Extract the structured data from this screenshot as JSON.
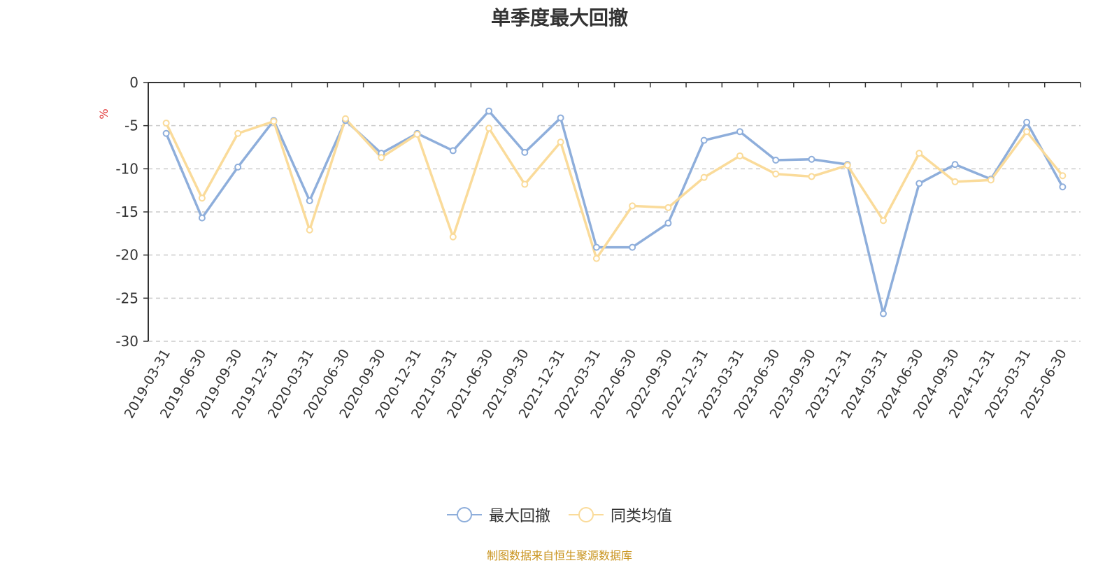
{
  "title": "单季度最大回撤",
  "source_note": "制图数据来自恒生聚源数据库",
  "colors": {
    "series1": "#8eaedb",
    "series2": "#fadb9a",
    "unit": "#e03030",
    "axis": "#333333",
    "grid": "#cccccc"
  },
  "chart_data": {
    "type": "line",
    "title": "单季度最大回撤",
    "ylabel": "%",
    "ylim": [
      -30,
      0
    ],
    "yticks": [
      0,
      -5,
      -10,
      -15,
      -20,
      -25,
      -30
    ],
    "grid": "horizontal-dashed",
    "legend_position": "bottom",
    "categories": [
      "2019-03-31",
      "2019-06-30",
      "2019-09-30",
      "2019-12-31",
      "2020-03-31",
      "2020-06-30",
      "2020-09-30",
      "2020-12-31",
      "2021-03-31",
      "2021-06-30",
      "2021-09-30",
      "2021-12-31",
      "2022-03-31",
      "2022-06-30",
      "2022-09-30",
      "2022-12-31",
      "2023-03-31",
      "2023-06-30",
      "2023-09-30",
      "2023-12-31",
      "2024-03-31",
      "2024-06-30",
      "2024-09-30",
      "2024-12-31",
      "2025-03-31",
      "2025-06-30"
    ],
    "series": [
      {
        "name": "最大回撤",
        "values": [
          -5.9,
          -15.7,
          -9.8,
          -4.4,
          -13.7,
          -4.4,
          -8.2,
          -5.9,
          -7.9,
          -3.3,
          -8.1,
          -4.1,
          -19.1,
          -19.1,
          -16.3,
          -6.7,
          -5.7,
          -9.0,
          -8.9,
          -9.5,
          -26.8,
          -11.7,
          -9.5,
          -11.2,
          -4.6,
          -12.1
        ]
      },
      {
        "name": "同类均值",
        "values": [
          -4.7,
          -13.4,
          -5.9,
          -4.5,
          -17.1,
          -4.2,
          -8.7,
          -6.0,
          -17.9,
          -5.3,
          -11.8,
          -6.9,
          -20.4,
          -14.3,
          -14.5,
          -11.0,
          -8.5,
          -10.6,
          -10.9,
          -9.6,
          -16.0,
          -8.2,
          -11.5,
          -11.3,
          -5.7,
          -10.8
        ]
      }
    ]
  }
}
